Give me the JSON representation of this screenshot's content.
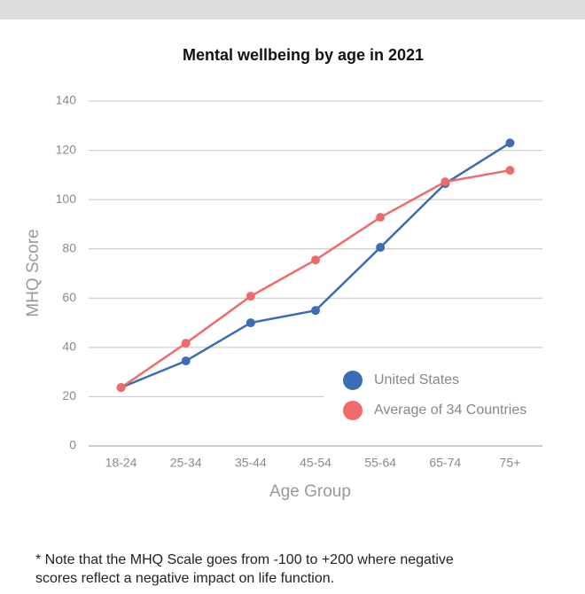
{
  "chart_data": {
    "type": "line",
    "title": "Mental wellbeing by age in 2021",
    "x_label": "Age Group",
    "y_label": "MHQ Score",
    "categories": [
      "18-24",
      "25-34",
      "35-44",
      "45-54",
      "55-64",
      "65-74",
      "75+"
    ],
    "series": [
      {
        "name": "United States",
        "color": "#3a6db5",
        "values": [
          23.7,
          34.5,
          50,
          55,
          80.6,
          106.5,
          123
        ]
      },
      {
        "name": "Average of 34 Countries",
        "color": "#f06a6a",
        "values": [
          23.7,
          41.7,
          60.8,
          75.5,
          92.8,
          107.2,
          111.9
        ]
      }
    ],
    "ylim": [
      0,
      140
    ],
    "yticks": [
      0,
      20,
      40,
      60,
      80,
      100,
      120,
      140
    ],
    "grid": true,
    "legend": "lower right",
    "note": [
      "* Note that the MHQ Scale goes from -100 to +200 where negative",
      "scores reflect a negative impact on life function."
    ]
  }
}
